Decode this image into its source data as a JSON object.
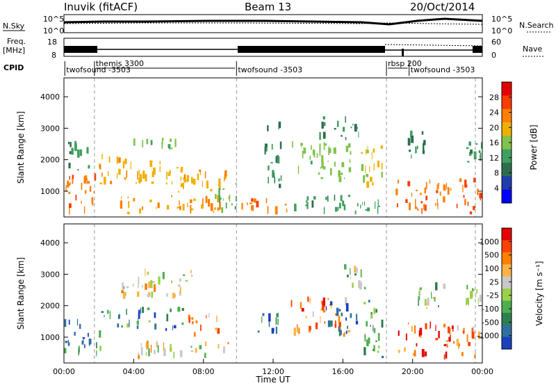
{
  "header": {
    "station": "Inuvik (fitACF)",
    "beam": "Beam 13",
    "date": "20/Oct/2014"
  },
  "strips": {
    "nsky": {
      "label": "N.Sky",
      "tick_top": "10^5",
      "tick_bottom": "10^0",
      "right_label": "N.Search",
      "right_tick_top": "10^5",
      "right_tick_bottom": "10^0"
    },
    "freq": {
      "label_line1": "Freq.",
      "label_line2": "[MHz]",
      "tick_top": "18",
      "tick_bottom": "8",
      "right_label": "Nave",
      "right_tick_top": "60",
      "right_tick_bottom": "0"
    },
    "cpid": {
      "label": "CPID",
      "segments": [
        {
          "name": "twofsound -3503",
          "start_hour": 0.05,
          "end_hour": 1.3
        },
        {
          "name": "themis 3300",
          "start_hour": 1.75,
          "end_hour": 9.9
        },
        {
          "name": "twofsound -3503",
          "start_hour": 9.9,
          "end_hour": 18.5
        },
        {
          "name": "rbsp 200",
          "start_hour": 18.5,
          "end_hour": 19.8
        },
        {
          "name": "twofsound -3503",
          "start_hour": 19.8,
          "end_hour": 24.0
        }
      ]
    }
  },
  "chart_data": [
    {
      "type": "heatmap",
      "name": "power",
      "ylabel": "Slant Range [km]",
      "xlim": [
        0,
        24
      ],
      "ylim": [
        180,
        4600
      ],
      "yticks": [
        1000,
        2000,
        3000,
        4000
      ],
      "colorbar": {
        "label": "Power [dB]",
        "ticks": [
          "28",
          "24",
          "20",
          "16",
          "12",
          "8",
          "4"
        ],
        "range": [
          0,
          32
        ],
        "colors": [
          "#0000ff",
          "#1f3fb0",
          "#2e6e4f",
          "#3f9f5f",
          "#7fc34a",
          "#f0b000",
          "#ff7f00",
          "#ff3b00",
          "#e60000"
        ]
      },
      "clusters": [
        {
          "start_hour": 0.0,
          "end_hour": 2.2,
          "range_min": 250,
          "range_max": 1600,
          "level": 24
        },
        {
          "start_hour": 0.2,
          "end_hour": 1.5,
          "range_min": 1600,
          "range_max": 2600,
          "level": 12
        },
        {
          "start_hour": 2.0,
          "end_hour": 7.0,
          "range_min": 1200,
          "range_max": 2200,
          "level": 20
        },
        {
          "start_hour": 3.5,
          "end_hour": 6.5,
          "range_min": 2300,
          "range_max": 2700,
          "level": 16
        },
        {
          "start_hour": 3.0,
          "end_hour": 9.5,
          "range_min": 250,
          "range_max": 900,
          "level": 22
        },
        {
          "start_hour": 6.0,
          "end_hour": 9.5,
          "range_min": 900,
          "range_max": 1700,
          "level": 20
        },
        {
          "start_hour": 8.5,
          "end_hour": 10.0,
          "range_min": 250,
          "range_max": 1300,
          "level": 14
        },
        {
          "start_hour": 10.0,
          "end_hour": 13.0,
          "range_min": 250,
          "range_max": 800,
          "level": 24
        },
        {
          "start_hour": 11.5,
          "end_hour": 12.5,
          "range_min": 800,
          "range_max": 3400,
          "level": 10
        },
        {
          "start_hour": 13.0,
          "end_hour": 16.5,
          "range_min": 1200,
          "range_max": 2600,
          "level": 16
        },
        {
          "start_hour": 14.5,
          "end_hour": 17.0,
          "range_min": 2600,
          "range_max": 3400,
          "level": 10
        },
        {
          "start_hour": 13.0,
          "end_hour": 18.5,
          "range_min": 250,
          "range_max": 900,
          "level": 12
        },
        {
          "start_hour": 17.0,
          "end_hour": 18.5,
          "range_min": 900,
          "range_max": 2500,
          "level": 18
        },
        {
          "start_hour": 19.0,
          "end_hour": 22.5,
          "range_min": 250,
          "range_max": 1400,
          "level": 24
        },
        {
          "start_hour": 19.5,
          "end_hour": 21.0,
          "range_min": 2000,
          "range_max": 3000,
          "level": 10
        },
        {
          "start_hour": 22.5,
          "end_hour": 24.0,
          "range_min": 250,
          "range_max": 1600,
          "level": 26
        },
        {
          "start_hour": 23.0,
          "end_hour": 24.0,
          "range_min": 1900,
          "range_max": 2600,
          "level": 12
        }
      ]
    },
    {
      "type": "heatmap",
      "name": "velocity",
      "ylabel": "Slant Range [km]",
      "xlabel": "Time UT",
      "xlim": [
        0,
        24
      ],
      "ylim": [
        180,
        4600
      ],
      "yticks": [
        1000,
        2000,
        3000,
        4000
      ],
      "xticks": [
        "00:00",
        "04:00",
        "08:00",
        "12:00",
        "16:00",
        "20:00",
        "00:00"
      ],
      "colorbar": {
        "label": "Velocity [m s⁻¹]",
        "ticks": [
          "1000",
          "500",
          "100",
          "25",
          "-25",
          "-100",
          "-500",
          "-1000"
        ],
        "colors": [
          "#1a3fc0",
          "#2f6fa0",
          "#2e7f4f",
          "#4caf50",
          "#9bd04a",
          "#c8c8c8",
          "#ffb347",
          "#ff7f00",
          "#ff4000",
          "#e60000"
        ]
      },
      "clusters": [
        {
          "start_hour": 0.0,
          "end_hour": 2.2,
          "range_min": 250,
          "range_max": 1600,
          "level": 2
        },
        {
          "start_hour": 2.0,
          "end_hour": 7.0,
          "range_min": 1200,
          "range_max": 2000,
          "level": 2
        },
        {
          "start_hour": 3.0,
          "end_hour": 7.5,
          "range_min": 2200,
          "range_max": 3200,
          "level": 5
        },
        {
          "start_hour": 4.0,
          "end_hour": 9.5,
          "range_min": 250,
          "range_max": 900,
          "level": 5
        },
        {
          "start_hour": 7.0,
          "end_hour": 9.0,
          "range_min": 1000,
          "range_max": 1800,
          "level": 6
        },
        {
          "start_hour": 11.0,
          "end_hour": 12.5,
          "range_min": 900,
          "range_max": 1900,
          "level": 1
        },
        {
          "start_hour": 13.0,
          "end_hour": 16.5,
          "range_min": 1000,
          "range_max": 2300,
          "level": 7
        },
        {
          "start_hour": 15.0,
          "end_hour": 17.0,
          "range_min": 1000,
          "range_max": 2200,
          "level": 1
        },
        {
          "start_hour": 16.0,
          "end_hour": 17.5,
          "range_min": 2400,
          "range_max": 3400,
          "level": 4
        },
        {
          "start_hour": 17.0,
          "end_hour": 18.5,
          "range_min": 250,
          "range_max": 2200,
          "level": 3
        },
        {
          "start_hour": 19.0,
          "end_hour": 22.5,
          "range_min": 250,
          "range_max": 1500,
          "level": 8
        },
        {
          "start_hour": 20.0,
          "end_hour": 22.0,
          "range_min": 1900,
          "range_max": 2800,
          "level": 4
        },
        {
          "start_hour": 22.5,
          "end_hour": 24.0,
          "range_min": 250,
          "range_max": 1500,
          "level": 7
        },
        {
          "start_hour": 23.0,
          "end_hour": 24.0,
          "range_min": 2000,
          "range_max": 2700,
          "level": 5
        }
      ]
    }
  ]
}
